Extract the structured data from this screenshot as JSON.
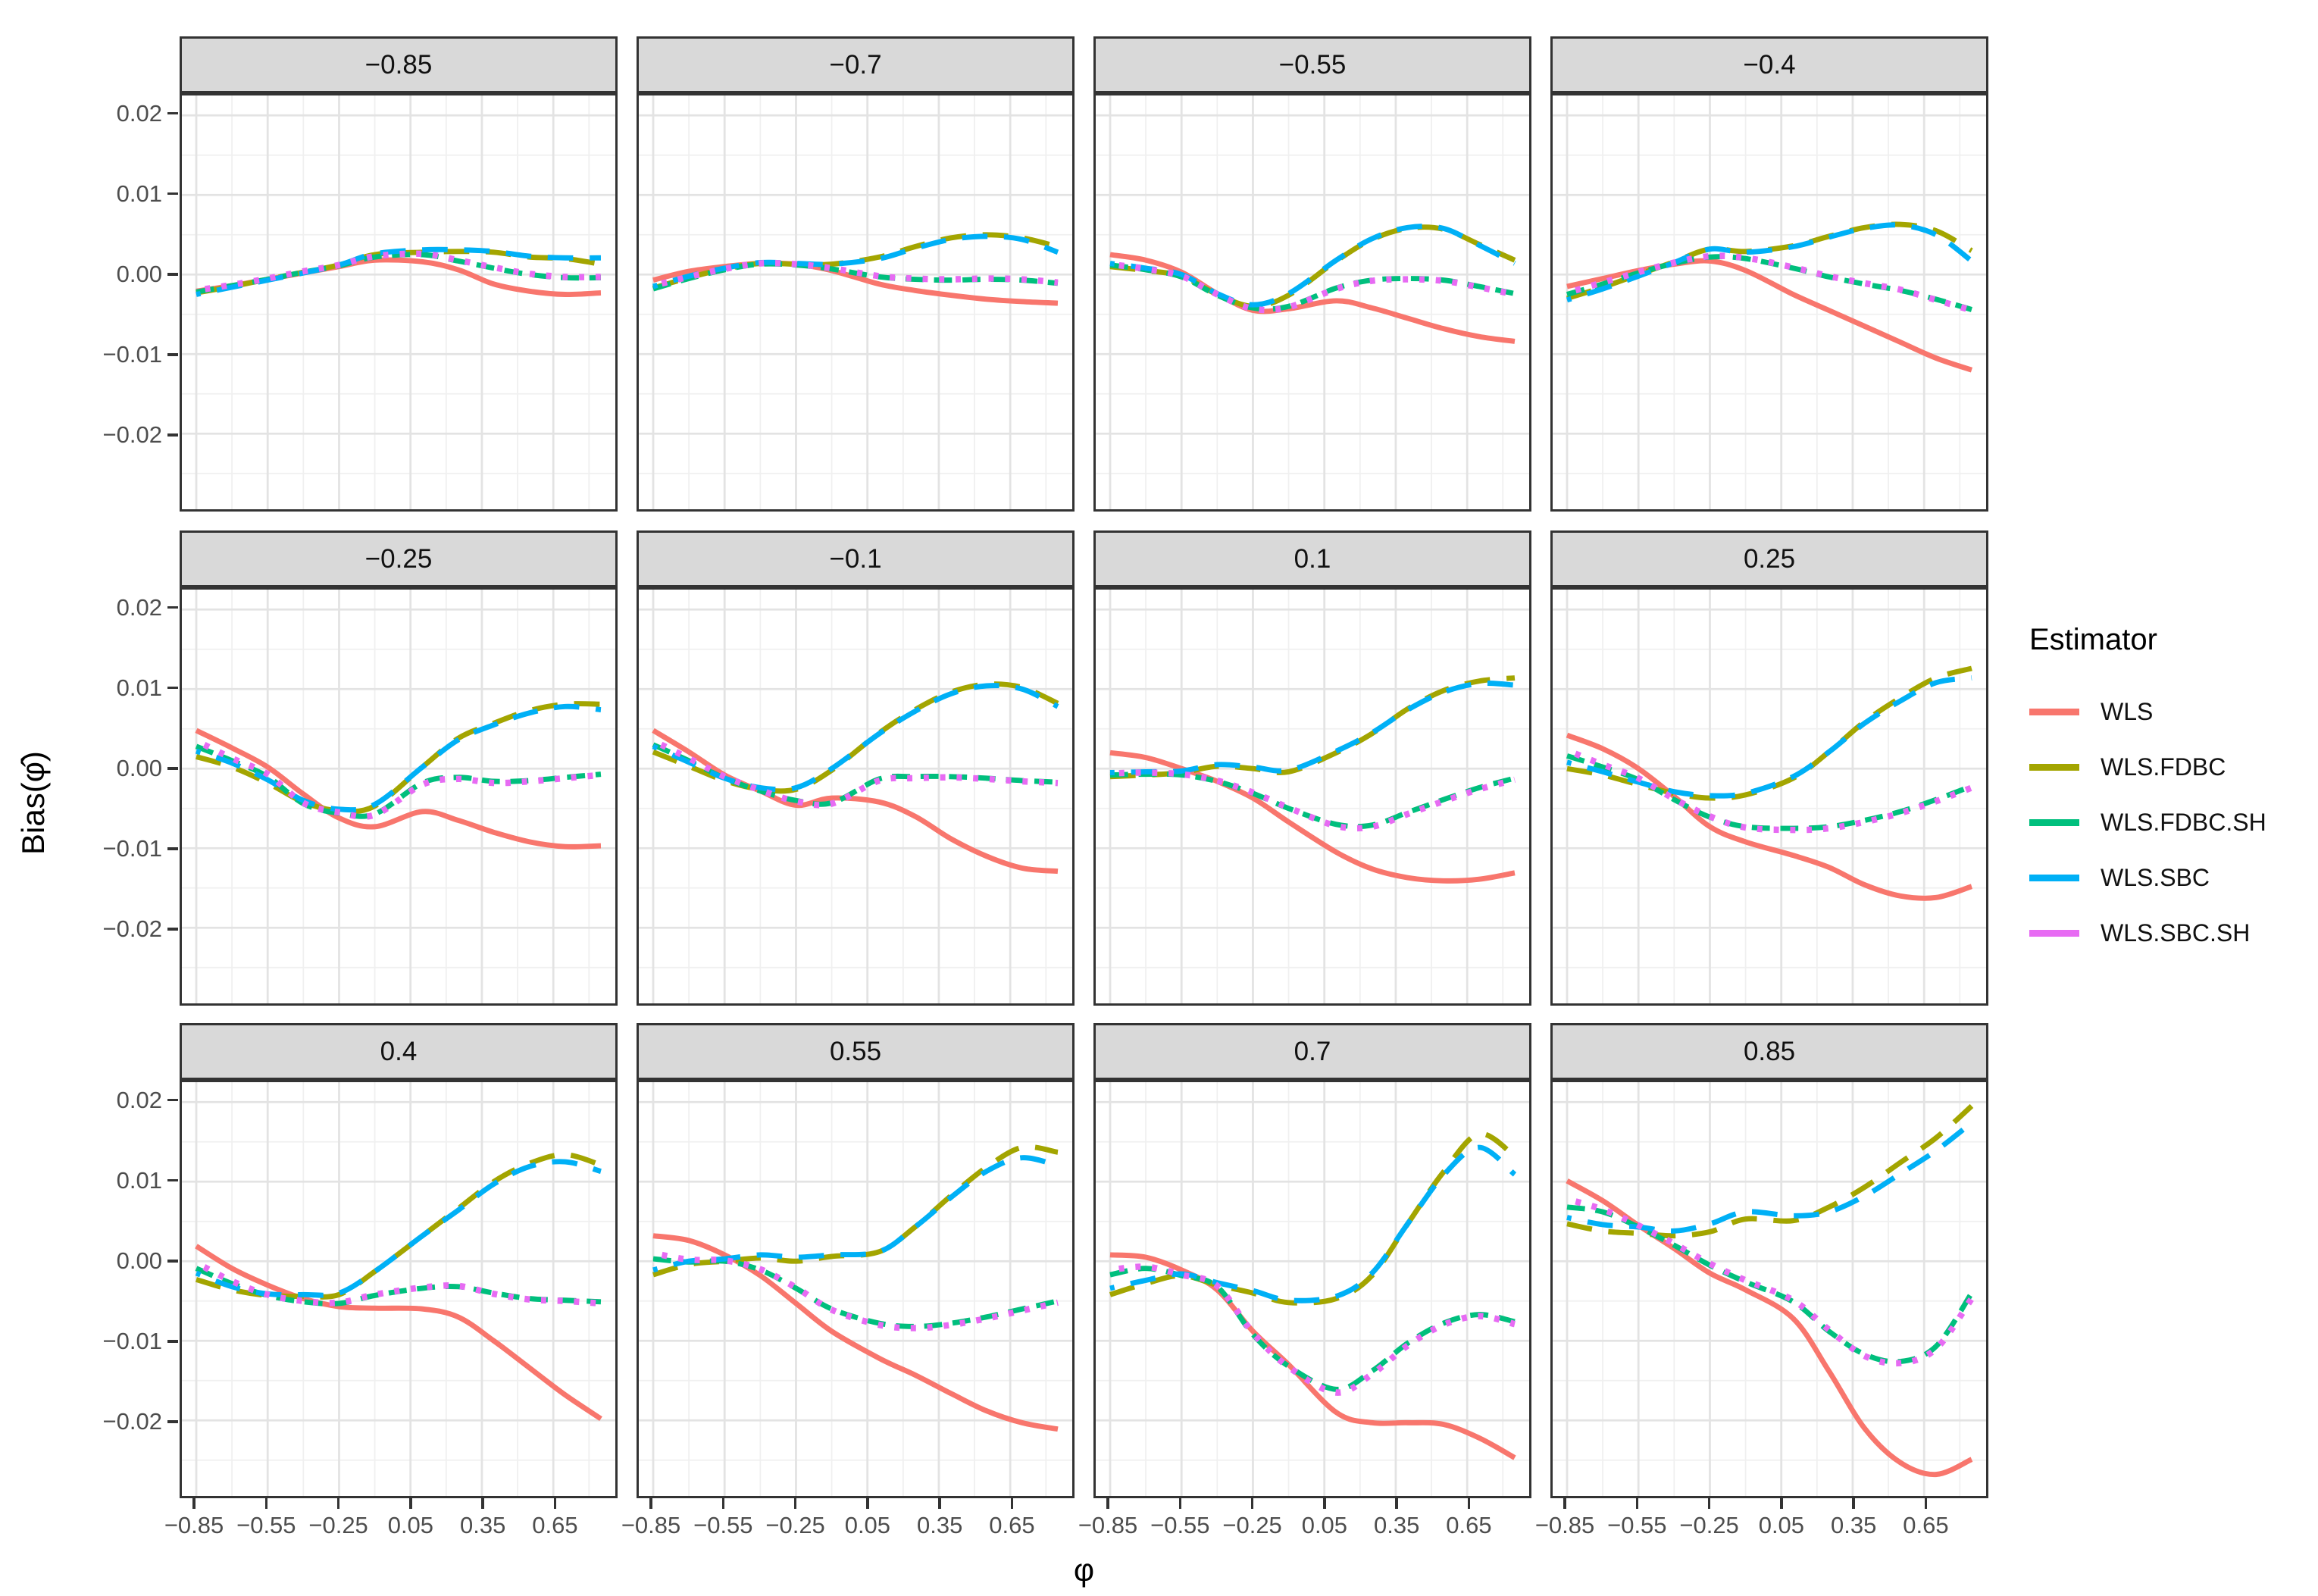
{
  "axes": {
    "x_title": "φ",
    "y_title": "Bias(φ̂)",
    "x_ticks": [
      "−0.85",
      "−0.55",
      "−0.25",
      "0.05",
      "0.35",
      "0.65"
    ],
    "x_tick_values": [
      -0.85,
      -0.55,
      -0.25,
      0.05,
      0.35,
      0.65
    ],
    "x_minor_values": [
      -0.7,
      -0.4,
      -0.1,
      0.2,
      0.5,
      0.8
    ],
    "y_ticks": [
      "0.02",
      "0.01",
      "0.00",
      "−0.01",
      "−0.02"
    ],
    "y_tick_values": [
      0.02,
      0.01,
      0,
      -0.01,
      -0.02
    ],
    "y_minor_values": [
      0.015,
      0.005,
      -0.005,
      -0.015,
      -0.025
    ],
    "x_range": [
      -0.91,
      0.91
    ],
    "y_range": [
      -0.0295,
      0.0225
    ],
    "grid": "on",
    "grid_major_color": "#E3E3E3",
    "grid_minor_color": "#F0F0F0",
    "panel_border_color": "#333333",
    "strip_background": "#D9D9D9",
    "tick_label_color": "#4D4D4D"
  },
  "legend": {
    "title": "Estimator",
    "position": "right",
    "items": [
      {
        "label": "WLS",
        "color": "#F8766D",
        "linetype": "solid"
      },
      {
        "label": "WLS.FDBC",
        "color": "#A3A500",
        "linetype": "longdash"
      },
      {
        "label": "WLS.FDBC.SH",
        "color": "#00BF7D",
        "linetype": "dash"
      },
      {
        "label": "WLS.SBC",
        "color": "#00B0F6",
        "linetype": "twodash"
      },
      {
        "label": "WLS.SBC.SH",
        "color": "#E76BF3",
        "linetype": "dotted"
      }
    ]
  },
  "chart_data": {
    "type": "line",
    "title": "",
    "xlabel": "φ",
    "ylabel": "Bias(φ̂)",
    "facet_labels": [
      "−0.85",
      "−0.7",
      "−0.55",
      "−0.4",
      "−0.25",
      "−0.1",
      "0.1",
      "0.25",
      "0.4",
      "0.55",
      "0.7",
      "0.85"
    ],
    "series_names": [
      "WLS",
      "WLS.FDBC",
      "WLS.FDBC.SH",
      "WLS.SBC",
      "WLS.SBC.SH"
    ],
    "x": [
      -0.85,
      -0.7,
      -0.55,
      -0.4,
      -0.25,
      -0.1,
      0.1,
      0.25,
      0.4,
      0.55,
      0.7,
      0.85
    ],
    "facets": [
      {
        "label": "−0.85",
        "series": {
          "WLS": [
            -0.0021,
            -0.0014,
            -0.0006,
            0.0002,
            0.001,
            0.0018,
            0.0016,
            0.0006,
            -0.0012,
            -0.0021,
            -0.0025,
            -0.0023
          ],
          "WLS.FDBC": [
            -0.0023,
            -0.0015,
            -0.0006,
            0.0003,
            0.0012,
            0.0025,
            0.0028,
            0.0029,
            0.0028,
            0.0022,
            0.002,
            0.0013
          ],
          "WLS.FDBC.SH": [
            -0.0022,
            -0.0014,
            -0.0006,
            0.0003,
            0.0011,
            0.0022,
            0.0025,
            0.0017,
            0.0008,
            0.0,
            -0.0004,
            -0.0004
          ],
          "WLS.SBC": [
            -0.0025,
            -0.0016,
            -0.0007,
            0.0002,
            0.0012,
            0.0026,
            0.0031,
            0.0031,
            0.0029,
            0.0023,
            0.0021,
            0.0021
          ],
          "WLS.SBC.SH": [
            -0.002,
            -0.0013,
            -0.0005,
            0.0004,
            0.0012,
            0.0023,
            0.0026,
            0.0018,
            0.0009,
            0.0001,
            -0.0003,
            -0.0003
          ]
        }
      },
      {
        "label": "−0.7",
        "series": {
          "WLS": [
            -0.0007,
            0.0004,
            0.001,
            0.0014,
            0.0013,
            0.0005,
            -0.0012,
            -0.002,
            -0.0026,
            -0.0031,
            -0.0034,
            -0.0036
          ],
          "WLS.FDBC": [
            -0.0017,
            -0.0004,
            0.0007,
            0.0014,
            0.0013,
            0.0013,
            0.0022,
            0.0035,
            0.0046,
            0.005,
            0.0046,
            0.0035
          ],
          "WLS.FDBC.SH": [
            -0.0018,
            -0.0005,
            0.0006,
            0.0013,
            0.0012,
            0.0007,
            -0.0003,
            -0.0006,
            -0.0007,
            -0.0006,
            -0.0007,
            -0.0011
          ],
          "WLS.SBC": [
            -0.0015,
            -0.0002,
            0.0008,
            0.0015,
            0.0014,
            0.0013,
            0.002,
            0.0033,
            0.0044,
            0.0048,
            0.0044,
            0.0028
          ],
          "WLS.SBC.SH": [
            -0.0014,
            -0.0003,
            0.0007,
            0.0014,
            0.0013,
            0.0008,
            -0.0002,
            -0.0005,
            -0.0006,
            -0.0005,
            -0.0006,
            -0.001
          ]
        }
      },
      {
        "label": "−0.55",
        "series": {
          "WLS": [
            0.0025,
            0.0018,
            0.0003,
            -0.0024,
            -0.0045,
            -0.0043,
            -0.0033,
            -0.0042,
            -0.0055,
            -0.0068,
            -0.0078,
            -0.0084
          ],
          "WLS.FDBC": [
            0.001,
            0.0005,
            -0.0002,
            -0.0025,
            -0.004,
            -0.0026,
            0.0017,
            0.0044,
            0.0058,
            0.0057,
            0.0038,
            0.0018
          ],
          "WLS.FDBC.SH": [
            0.0012,
            0.0006,
            -0.0003,
            -0.0026,
            -0.0042,
            -0.004,
            -0.0017,
            -0.0007,
            -0.0005,
            -0.0007,
            -0.0015,
            -0.0024
          ],
          "WLS.SBC": [
            0.0014,
            0.0008,
            0.0,
            -0.0024,
            -0.0038,
            -0.0024,
            0.0018,
            0.0045,
            0.0059,
            0.0058,
            0.0037,
            0.0014
          ],
          "WLS.SBC.SH": [
            0.0013,
            0.0007,
            -0.0002,
            -0.0025,
            -0.0043,
            -0.0041,
            -0.0018,
            -0.0008,
            -0.0006,
            -0.0008,
            -0.0016,
            -0.0025
          ]
        }
      },
      {
        "label": "−0.4",
        "series": {
          "WLS": [
            -0.0015,
            -0.0005,
            0.0005,
            0.0013,
            0.0017,
            0.0005,
            -0.0025,
            -0.0045,
            -0.0065,
            -0.0085,
            -0.0105,
            -0.012
          ],
          "WLS.FDBC": [
            -0.003,
            -0.0016,
            0.0,
            0.0016,
            0.0032,
            0.0029,
            0.0036,
            0.0048,
            0.0059,
            0.0063,
            0.0055,
            0.003
          ],
          "WLS.FDBC.SH": [
            -0.0025,
            -0.0012,
            0.0002,
            0.0014,
            0.0022,
            0.002,
            0.0008,
            -0.0003,
            -0.0012,
            -0.002,
            -0.0031,
            -0.0044
          ],
          "WLS.SBC": [
            -0.0032,
            -0.0018,
            -0.0002,
            0.0015,
            0.0032,
            0.0028,
            0.0035,
            0.0047,
            0.0058,
            0.0062,
            0.005,
            0.0017
          ],
          "WLS.SBC.SH": [
            -0.0023,
            -0.001,
            0.0003,
            0.0015,
            0.0023,
            0.0021,
            0.0009,
            -0.0002,
            -0.0011,
            -0.0019,
            -0.0032,
            -0.0045
          ]
        }
      },
      {
        "label": "−0.25",
        "series": {
          "WLS": [
            0.0048,
            0.0026,
            0.0002,
            -0.0032,
            -0.0062,
            -0.0073,
            -0.0054,
            -0.0065,
            -0.008,
            -0.0092,
            -0.0098,
            -0.0097
          ],
          "WLS.FDBC": [
            0.0015,
            0.0002,
            -0.0018,
            -0.0042,
            -0.0053,
            -0.0047,
            0.0002,
            0.0038,
            0.0057,
            0.0073,
            0.0081,
            0.0081
          ],
          "WLS.FDBC.SH": [
            0.0028,
            0.001,
            -0.001,
            -0.0044,
            -0.0056,
            -0.0057,
            -0.0018,
            -0.0011,
            -0.0016,
            -0.0015,
            -0.0011,
            -0.0007
          ],
          "WLS.SBC": [
            0.0022,
            0.0007,
            -0.0014,
            -0.004,
            -0.0051,
            -0.0045,
            0.0002,
            0.0036,
            0.0055,
            0.007,
            0.0078,
            0.0074
          ],
          "WLS.SBC.SH": [
            0.0035,
            0.0013,
            -0.0007,
            -0.0043,
            -0.0055,
            -0.0058,
            -0.002,
            -0.0013,
            -0.0018,
            -0.0016,
            -0.0012,
            -0.0008
          ]
        }
      },
      {
        "label": "−0.1",
        "series": {
          "WLS": [
            0.0048,
            0.0021,
            -0.0008,
            -0.0028,
            -0.0046,
            -0.0037,
            -0.0042,
            -0.006,
            -0.0088,
            -0.011,
            -0.0125,
            -0.0129
          ],
          "WLS.FDBC": [
            0.0021,
            0.0003,
            -0.0015,
            -0.0026,
            -0.0026,
            -0.0002,
            0.0045,
            0.0074,
            0.0096,
            0.0106,
            0.0102,
            0.0082
          ],
          "WLS.FDBC.SH": [
            0.003,
            0.001,
            -0.0012,
            -0.0028,
            -0.004,
            -0.0043,
            -0.0013,
            -0.001,
            -0.001,
            -0.0012,
            -0.0015,
            -0.0017
          ],
          "WLS.SBC": [
            0.0028,
            0.0008,
            -0.0012,
            -0.0024,
            -0.0024,
            0.0,
            0.0044,
            0.0072,
            0.0094,
            0.0104,
            0.01,
            0.0078
          ],
          "WLS.SBC.SH": [
            0.0035,
            0.0013,
            -0.001,
            -0.0027,
            -0.0041,
            -0.0044,
            -0.0015,
            -0.0012,
            -0.0011,
            -0.0013,
            -0.0016,
            -0.0018
          ]
        }
      },
      {
        "label": "0.1",
        "series": {
          "WLS": [
            0.002,
            0.0014,
            0.0,
            -0.0016,
            -0.0037,
            -0.0067,
            -0.0105,
            -0.0126,
            -0.0137,
            -0.0141,
            -0.0139,
            -0.0131
          ],
          "WLS.FDBC": [
            -0.001,
            -0.0008,
            -0.0005,
            0.0003,
            0.0,
            -0.0004,
            0.002,
            0.0044,
            0.0075,
            0.0098,
            0.011,
            0.0114
          ],
          "WLS.FDBC.SH": [
            -0.0008,
            -0.0007,
            -0.0008,
            -0.0016,
            -0.0031,
            -0.005,
            -0.007,
            -0.0071,
            -0.0055,
            -0.0039,
            -0.0024,
            -0.0012
          ],
          "WLS.SBC": [
            -0.0005,
            -0.0004,
            -0.0003,
            0.0005,
            0.0002,
            -0.0002,
            0.0022,
            0.0045,
            0.0074,
            0.0096,
            0.0107,
            0.0105
          ],
          "WLS.SBC.SH": [
            -0.0006,
            -0.0005,
            -0.0007,
            -0.0015,
            -0.003,
            -0.0049,
            -0.0072,
            -0.0073,
            -0.0057,
            -0.0041,
            -0.0026,
            -0.0014
          ]
        }
      },
      {
        "label": "0.25",
        "series": {
          "WLS": [
            0.0042,
            0.0025,
            0.0,
            -0.0035,
            -0.0073,
            -0.0092,
            -0.0109,
            -0.0124,
            -0.0146,
            -0.016,
            -0.0162,
            -0.0148
          ],
          "WLS.FDBC": [
            0.0,
            -0.0008,
            -0.002,
            -0.0031,
            -0.0037,
            -0.0033,
            -0.0012,
            0.0021,
            0.0059,
            0.0089,
            0.0114,
            0.0126
          ],
          "WLS.FDBC.SH": [
            0.0016,
            0.0002,
            -0.0014,
            -0.0039,
            -0.0061,
            -0.0073,
            -0.0075,
            -0.0073,
            -0.0065,
            -0.0054,
            -0.0039,
            -0.0022
          ],
          "WLS.SBC": [
            0.0008,
            -0.0004,
            -0.0017,
            -0.0029,
            -0.0034,
            -0.0031,
            -0.001,
            0.0021,
            0.0057,
            0.0085,
            0.0108,
            0.0114
          ],
          "WLS.SBC.SH": [
            0.0023,
            0.0005,
            -0.0012,
            -0.0038,
            -0.006,
            -0.0074,
            -0.0077,
            -0.0075,
            -0.0067,
            -0.0056,
            -0.0041,
            -0.0024
          ]
        }
      },
      {
        "label": "0.4",
        "series": {
          "WLS": [
            0.0019,
            -0.0009,
            -0.003,
            -0.0047,
            -0.0057,
            -0.0059,
            -0.006,
            -0.007,
            -0.01,
            -0.0134,
            -0.0168,
            -0.0198
          ],
          "WLS.FDBC": [
            -0.0023,
            -0.0036,
            -0.0043,
            -0.0044,
            -0.0042,
            -0.0013,
            0.0032,
            0.0066,
            0.01,
            0.0123,
            0.0134,
            0.0121
          ],
          "WLS.FDBC.SH": [
            -0.0009,
            -0.0028,
            -0.0043,
            -0.0051,
            -0.0053,
            -0.0043,
            -0.0034,
            -0.0032,
            -0.004,
            -0.0047,
            -0.0049,
            -0.0051
          ],
          "WLS.SBC": [
            -0.0015,
            -0.0032,
            -0.0041,
            -0.0042,
            -0.004,
            -0.0013,
            0.0032,
            0.0064,
            0.0097,
            0.0119,
            0.0125,
            0.0113
          ],
          "WLS.SBC.SH": [
            -0.0002,
            -0.0025,
            -0.0042,
            -0.005,
            -0.0052,
            -0.0042,
            -0.0033,
            -0.0031,
            -0.0041,
            -0.0048,
            -0.005,
            -0.0053
          ]
        }
      },
      {
        "label": "0.55",
        "series": {
          "WLS": [
            0.0032,
            0.0026,
            0.0008,
            -0.0018,
            -0.0053,
            -0.0088,
            -0.0122,
            -0.0143,
            -0.0166,
            -0.0188,
            -0.0203,
            -0.0211
          ],
          "WLS.FDBC": [
            -0.0017,
            -0.0004,
            0.0,
            0.0004,
            0.0,
            0.0006,
            0.0012,
            0.0043,
            0.0082,
            0.0118,
            0.0143,
            0.0137
          ],
          "WLS.FDBC.SH": [
            0.0003,
            -0.0001,
            0.0,
            -0.0011,
            -0.0034,
            -0.006,
            -0.0078,
            -0.0082,
            -0.0078,
            -0.007,
            -0.006,
            -0.005
          ],
          "WLS.SBC": [
            -0.0011,
            0.0,
            0.0003,
            0.0008,
            0.0005,
            0.0008,
            0.0012,
            0.0043,
            0.008,
            0.0113,
            0.013,
            0.012
          ],
          "WLS.SBC.SH": [
            0.001,
            0.0002,
            0.0001,
            -0.001,
            -0.0033,
            -0.0061,
            -0.008,
            -0.0084,
            -0.008,
            -0.0072,
            -0.0062,
            -0.0052
          ]
        }
      },
      {
        "label": "0.7",
        "series": {
          "WLS": [
            0.0008,
            0.0005,
            -0.0011,
            -0.0036,
            -0.0088,
            -0.013,
            -0.019,
            -0.0203,
            -0.0203,
            -0.0205,
            -0.0222,
            -0.0247
          ],
          "WLS.FDBC": [
            -0.0042,
            -0.0028,
            -0.0018,
            -0.003,
            -0.004,
            -0.0052,
            -0.0047,
            -0.0018,
            0.0047,
            0.0112,
            0.016,
            0.0132
          ],
          "WLS.FDBC.SH": [
            -0.0017,
            -0.0009,
            -0.0018,
            -0.0032,
            -0.0092,
            -0.0132,
            -0.0161,
            -0.0138,
            -0.0103,
            -0.0078,
            -0.0067,
            -0.0076
          ],
          "WLS.SBC": [
            -0.0034,
            -0.0024,
            -0.0016,
            -0.0027,
            -0.0037,
            -0.0049,
            -0.0044,
            -0.0015,
            0.0047,
            0.0108,
            0.0143,
            0.0109
          ],
          "WLS.SBC.SH": [
            -0.0011,
            -0.0007,
            -0.0017,
            -0.0031,
            -0.009,
            -0.0133,
            -0.0165,
            -0.0142,
            -0.0106,
            -0.008,
            -0.0069,
            -0.0079
          ]
        }
      },
      {
        "label": "0.85",
        "series": {
          "WLS": [
            0.0101,
            0.0076,
            0.0045,
            0.0016,
            -0.0015,
            -0.0036,
            -0.0072,
            -0.0138,
            -0.021,
            -0.0253,
            -0.0268,
            -0.0249
          ],
          "WLS.FDBC": [
            0.0047,
            0.0038,
            0.0035,
            0.0032,
            0.0037,
            0.0053,
            0.0051,
            0.0068,
            0.0093,
            0.0124,
            0.0155,
            0.0195
          ],
          "WLS.FDBC.SH": [
            0.0068,
            0.0062,
            0.0043,
            0.002,
            -0.0005,
            -0.0026,
            -0.0051,
            -0.0088,
            -0.0117,
            -0.0126,
            -0.0107,
            -0.004
          ],
          "WLS.SBC": [
            0.0055,
            0.0046,
            0.0043,
            0.0038,
            0.0047,
            0.0062,
            0.0057,
            0.0062,
            0.0082,
            0.011,
            0.0139,
            0.0174
          ],
          "WLS.SBC.SH": [
            0.0078,
            0.0065,
            0.0045,
            0.0022,
            -0.0003,
            -0.0024,
            -0.0049,
            -0.0086,
            -0.0119,
            -0.0128,
            -0.011,
            -0.0047
          ]
        }
      }
    ]
  }
}
